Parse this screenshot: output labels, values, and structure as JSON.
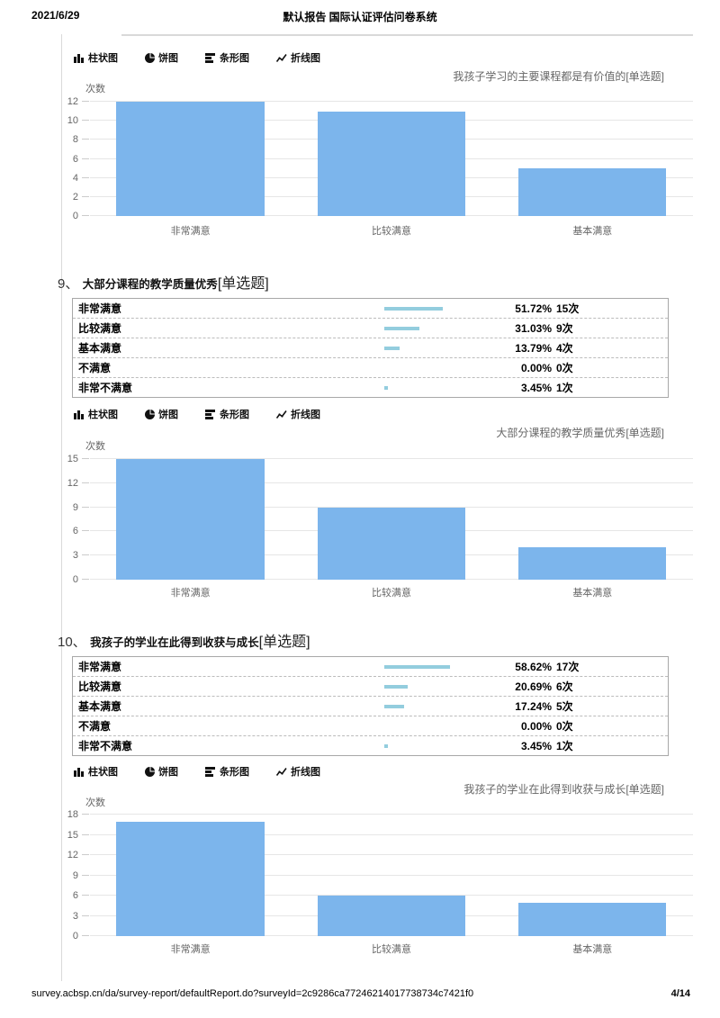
{
  "page": {
    "header_date": "2021/6/29",
    "header_title": "默认报告 国际认证评估问卷系统",
    "footer_url": "survey.acbsp.cn/da/survey-report/defaultReport.do?surveyId=2c9286ca77246214017738734c7421f0",
    "footer_page": "4/14"
  },
  "colors": {
    "bar": "#7cb5ec",
    "minibar": "#93cdde",
    "grid": "#e6e6e6",
    "axis_text": "#666666"
  },
  "tabs": [
    {
      "label": "柱状图",
      "icon": "bar-chart-icon"
    },
    {
      "label": "饼图",
      "icon": "pie-chart-icon"
    },
    {
      "label": "条形图",
      "icon": "hbar-chart-icon"
    },
    {
      "label": "折线图",
      "icon": "line-chart-icon"
    }
  ],
  "questions": [
    {
      "number": "9、",
      "title": "大部分课程的教学质量优秀",
      "tag": "[单选题]",
      "rows": [
        {
          "label": "非常满意",
          "percent": "51.72%",
          "count": "15次",
          "pct": 51.72
        },
        {
          "label": "比较满意",
          "percent": "31.03%",
          "count": "9次",
          "pct": 31.03
        },
        {
          "label": "基本满意",
          "percent": "13.79%",
          "count": "4次",
          "pct": 13.79
        },
        {
          "label": "不满意",
          "percent": "0.00%",
          "count": "0次",
          "pct": 0
        },
        {
          "label": "非常不满意",
          "percent": "3.45%",
          "count": "1次",
          "pct": 3.45
        }
      ]
    },
    {
      "number": "10、",
      "title": "我孩子的学业在此得到收获与成长",
      "tag": "[单选题]",
      "rows": [
        {
          "label": "非常满意",
          "percent": "58.62%",
          "count": "17次",
          "pct": 58.62
        },
        {
          "label": "比较满意",
          "percent": "20.69%",
          "count": "6次",
          "pct": 20.69
        },
        {
          "label": "基本满意",
          "percent": "17.24%",
          "count": "5次",
          "pct": 17.24
        },
        {
          "label": "不满意",
          "percent": "0.00%",
          "count": "0次",
          "pct": 0
        },
        {
          "label": "非常不满意",
          "percent": "3.45%",
          "count": "1次",
          "pct": 3.45
        }
      ]
    }
  ],
  "chart_data": [
    {
      "type": "bar",
      "title": "我孩子学习的主要课程都是有价值的[单选题]",
      "ylabel": "次数",
      "categories": [
        "非常满意",
        "比较满意",
        "基本满意"
      ],
      "values": [
        12,
        11,
        5
      ],
      "ylim": [
        0,
        12
      ],
      "yticks": [
        0,
        2,
        4,
        6,
        8,
        10,
        12
      ],
      "grid": true,
      "legend": "none"
    },
    {
      "type": "bar",
      "title": "大部分课程的教学质量优秀[单选题]",
      "ylabel": "次数",
      "categories": [
        "非常满意",
        "比较满意",
        "基本满意"
      ],
      "values": [
        15,
        9,
        4
      ],
      "ylim": [
        0,
        15
      ],
      "yticks": [
        0,
        3,
        6,
        9,
        12,
        15
      ],
      "grid": true,
      "legend": "none"
    },
    {
      "type": "bar",
      "title": "我孩子的学业在此得到收获与成长[单选题]",
      "ylabel": "次数",
      "categories": [
        "非常满意",
        "比较满意",
        "基本满意"
      ],
      "values": [
        17,
        6,
        5
      ],
      "ylim": [
        0,
        18
      ],
      "yticks": [
        0,
        3,
        6,
        9,
        12,
        15,
        18
      ],
      "grid": true,
      "legend": "none"
    }
  ]
}
